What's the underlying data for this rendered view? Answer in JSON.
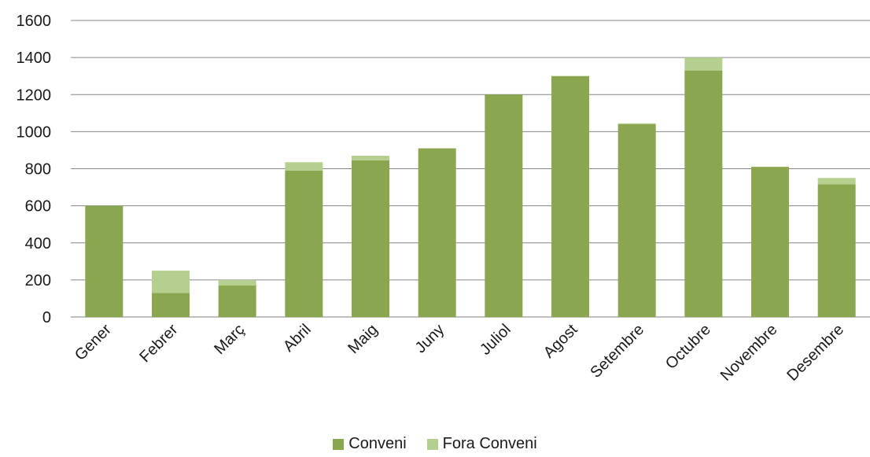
{
  "chart_data": {
    "type": "bar",
    "stacked": true,
    "categories": [
      "Gener",
      "Febrer",
      "Març",
      "Abril",
      "Maig",
      "Juny",
      "Juliol",
      "Agost",
      "Setembre",
      "Octubre",
      "Novembre",
      "Desembre"
    ],
    "series": [
      {
        "name": "Conveni",
        "color": "#8aa64e",
        "values": [
          600,
          130,
          170,
          790,
          845,
          910,
          1200,
          1300,
          1040,
          1330,
          810,
          715
        ]
      },
      {
        "name": "Fora Conveni",
        "color": "#b5cf8f",
        "values": [
          0,
          120,
          30,
          45,
          25,
          0,
          0,
          0,
          5,
          70,
          0,
          35
        ]
      }
    ],
    "y_ticks": [
      "0",
      "200",
      "400",
      "600",
      "800",
      "1000",
      "1200",
      "1400",
      "1600"
    ],
    "ylim": [
      0,
      1600
    ],
    "grid": true,
    "legend_position": "bottom",
    "title": "",
    "xlabel": "",
    "ylabel": ""
  }
}
